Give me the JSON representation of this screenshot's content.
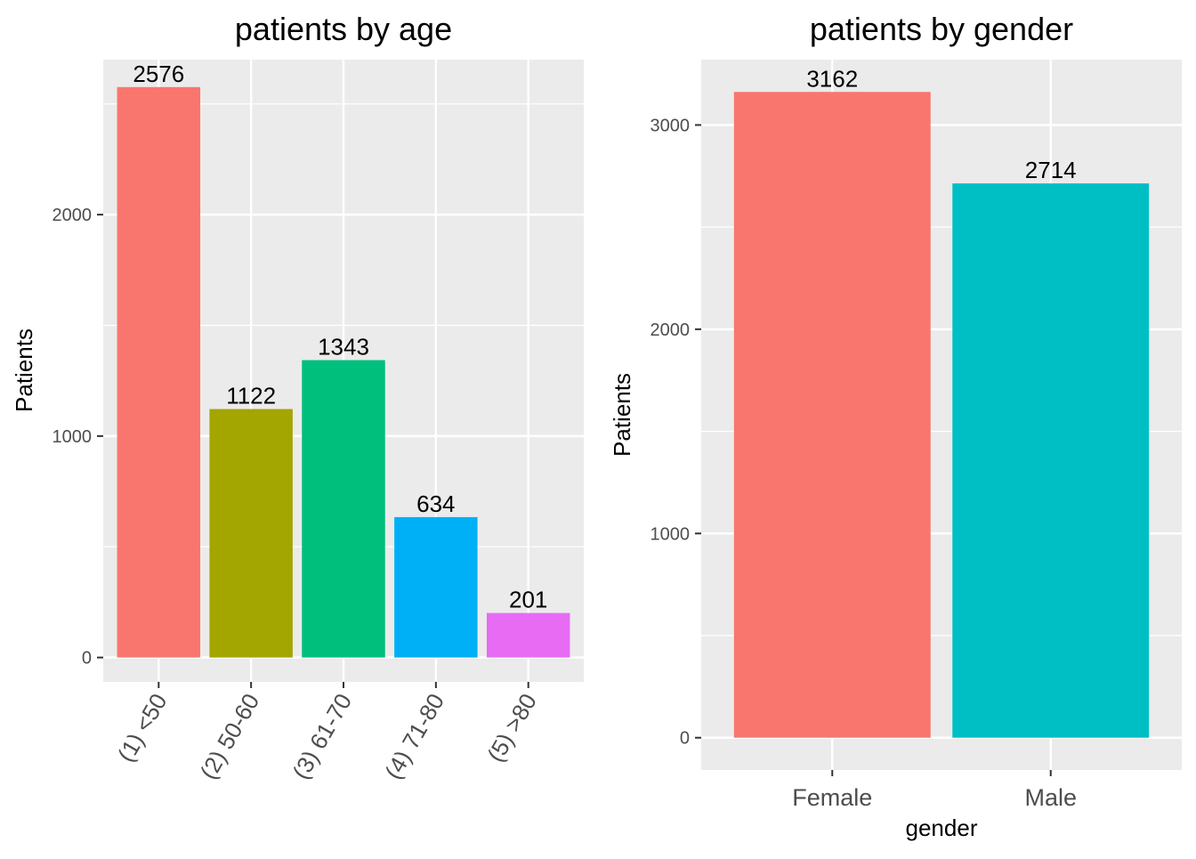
{
  "chart_data": [
    {
      "type": "bar",
      "title": "patients by age",
      "xlabel": "",
      "ylabel": "Patients",
      "categories": [
        "(1) <50",
        "(2) 50-60",
        "(3) 61-70",
        "(4) 71-80",
        "(5) >80"
      ],
      "values": [
        2576,
        1122,
        1343,
        634,
        201
      ],
      "data_labels": [
        "2576",
        "1122",
        "1343",
        "634",
        "201"
      ],
      "colors": [
        "#F8766D",
        "#A3A500",
        "#00BF7D",
        "#00B0F6",
        "#E76BF3"
      ],
      "ylim": [
        -110,
        2700
      ],
      "yticks": [
        0,
        1000,
        2000
      ],
      "ytick_labels": [
        "0",
        "1000",
        "2000"
      ],
      "grid": true,
      "legend": "none"
    },
    {
      "type": "bar",
      "title": "patients by gender",
      "xlabel": "gender",
      "ylabel": "Patients",
      "categories": [
        "Female",
        "Male"
      ],
      "values": [
        3162,
        2714
      ],
      "data_labels": [
        "3162",
        "2714"
      ],
      "colors": [
        "#F8766D",
        "#00BFC4"
      ],
      "ylim": [
        -158,
        3320
      ],
      "yticks": [
        0,
        1000,
        2000,
        3000
      ],
      "ytick_labels": [
        "0",
        "1000",
        "2000",
        "3000"
      ],
      "grid": true,
      "legend": "none"
    }
  ],
  "theme": {
    "panel_background": "#EBEBEB",
    "grid_color": "#FFFFFF",
    "tick_label_color": "#4D4D4D",
    "text_color": "#000000"
  }
}
